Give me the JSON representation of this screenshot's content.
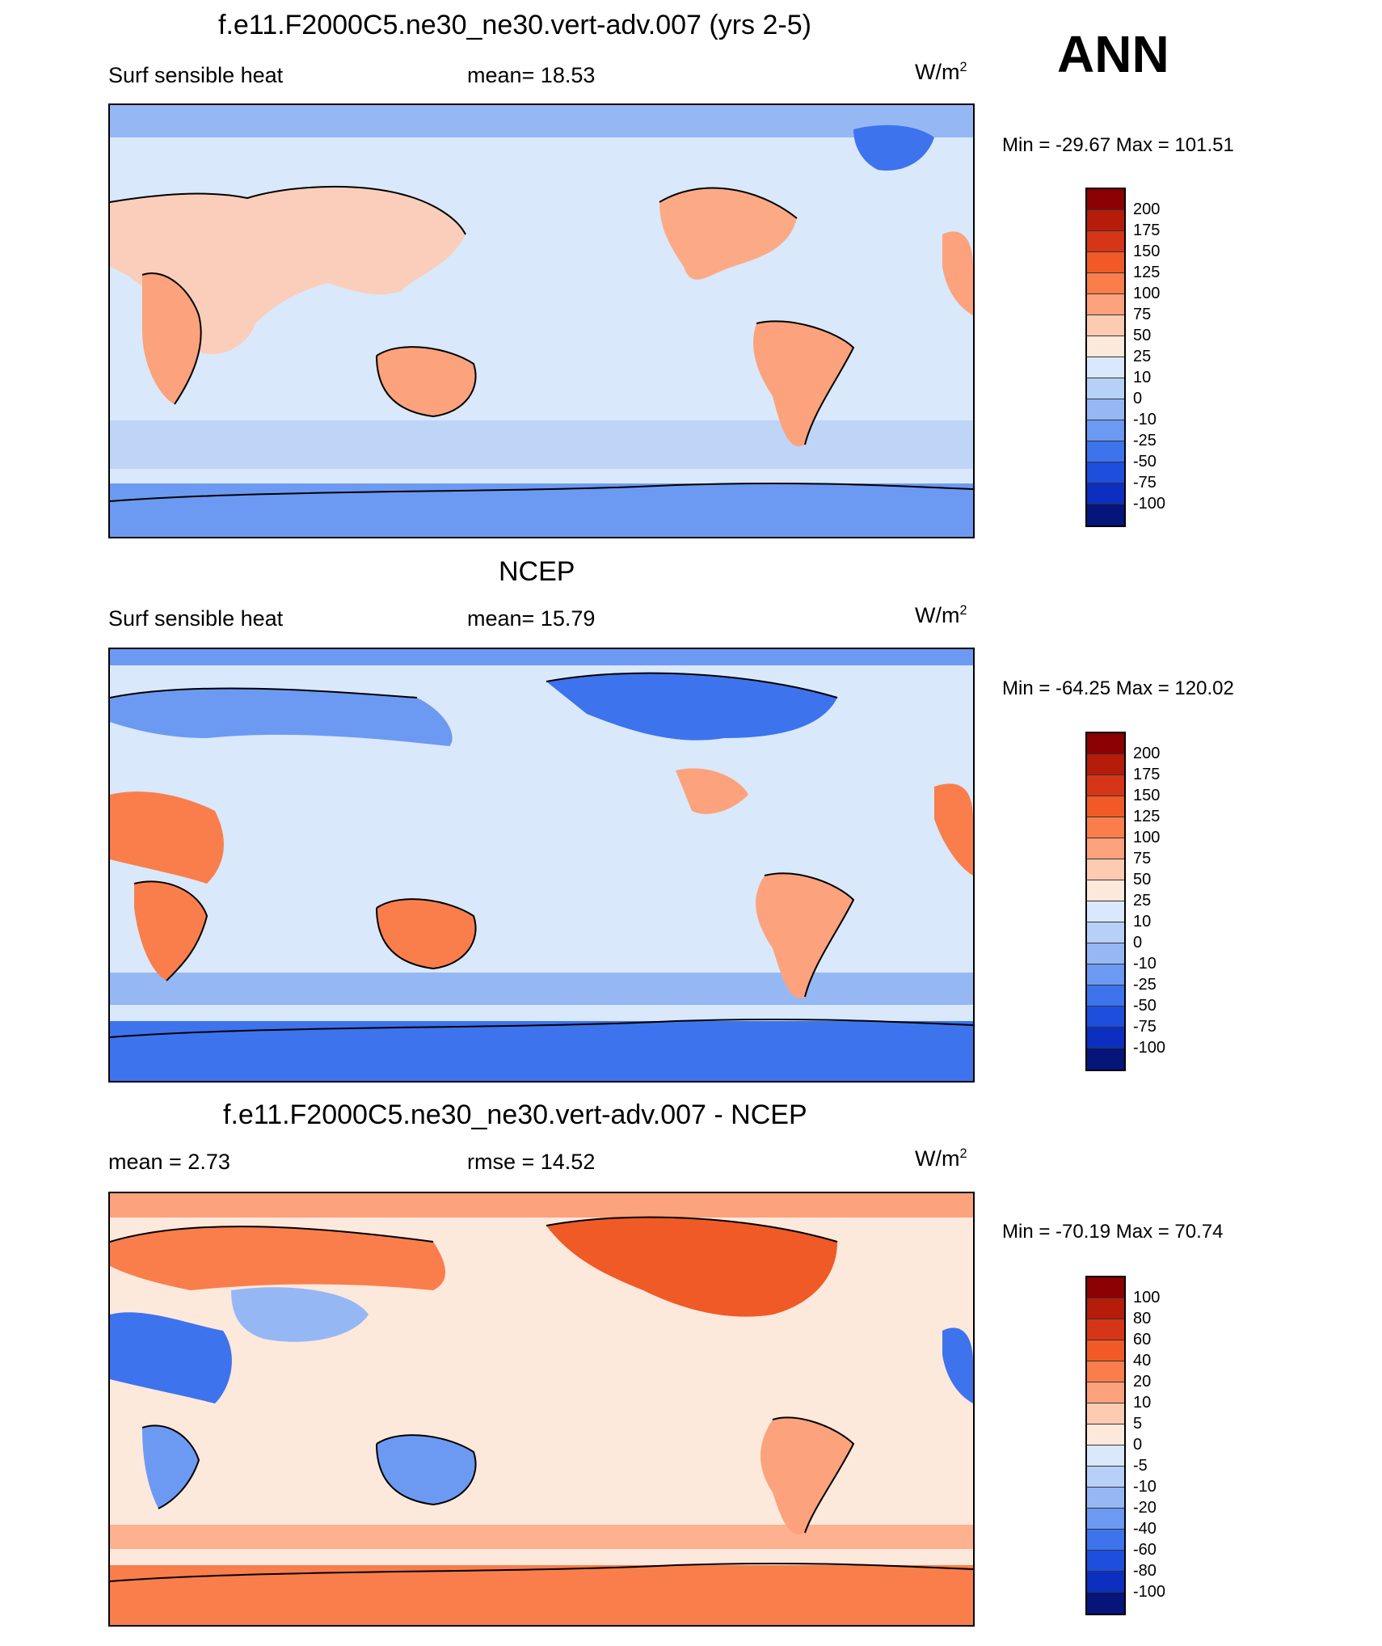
{
  "corner_label": "ANN",
  "units_base": "W/m",
  "units_exp": "2",
  "panels": [
    {
      "title": "f.e11.F2000C5.ne30_ne30.vert-adv.007 (yrs 2-5)",
      "left_label": "Surf sensible heat",
      "center_label": "mean=  18.53",
      "min_max": "Min = -29.67 Max = 101.51",
      "colorbar": {
        "levels": [
          "200",
          "175",
          "150",
          "125",
          "100",
          "75",
          "50",
          "25",
          "10",
          "0",
          "-10",
          "-25",
          "-50",
          "-75",
          "-100"
        ],
        "colors": [
          "#8b0000",
          "#b51c0a",
          "#d73518",
          "#ef5a27",
          "#f97e4c",
          "#fca27c",
          "#fdcbb2",
          "#fde8dc",
          "#d9e8fb",
          "#b7d0f7",
          "#95b8f5",
          "#6c9af2",
          "#3e73ee",
          "#1d4ede",
          "#0c2fc2",
          "#06157a"
        ]
      }
    },
    {
      "title": "NCEP",
      "left_label": "Surf sensible heat",
      "center_label": "mean=  15.79",
      "min_max": "Min = -64.25 Max = 120.02",
      "colorbar": {
        "levels": [
          "200",
          "175",
          "150",
          "125",
          "100",
          "75",
          "50",
          "25",
          "10",
          "0",
          "-10",
          "-25",
          "-50",
          "-75",
          "-100"
        ],
        "colors": [
          "#8b0000",
          "#b51c0a",
          "#d73518",
          "#ef5a27",
          "#f97e4c",
          "#fca27c",
          "#fdcbb2",
          "#fde8dc",
          "#d9e8fb",
          "#b7d0f7",
          "#95b8f5",
          "#6c9af2",
          "#3e73ee",
          "#1d4ede",
          "#0c2fc2",
          "#06157a"
        ]
      }
    },
    {
      "title": "f.e11.F2000C5.ne30_ne30.vert-adv.007 - NCEP",
      "left_label": "mean =   2.73",
      "center_label": "rmse =  14.52",
      "min_max": "Min = -70.19 Max =  70.74",
      "colorbar": {
        "levels": [
          "100",
          "80",
          "60",
          "40",
          "20",
          "10",
          "5",
          "0",
          "-5",
          "-10",
          "-20",
          "-40",
          "-60",
          "-80",
          "-100"
        ],
        "colors": [
          "#8b0000",
          "#b51c0a",
          "#d73518",
          "#ef5a27",
          "#f97e4c",
          "#fca27c",
          "#fdcbb2",
          "#fde8dc",
          "#d9e8fb",
          "#b7d0f7",
          "#95b8f5",
          "#6c9af2",
          "#3e73ee",
          "#1d4ede",
          "#0c2fc2",
          "#06157a"
        ]
      }
    }
  ]
}
